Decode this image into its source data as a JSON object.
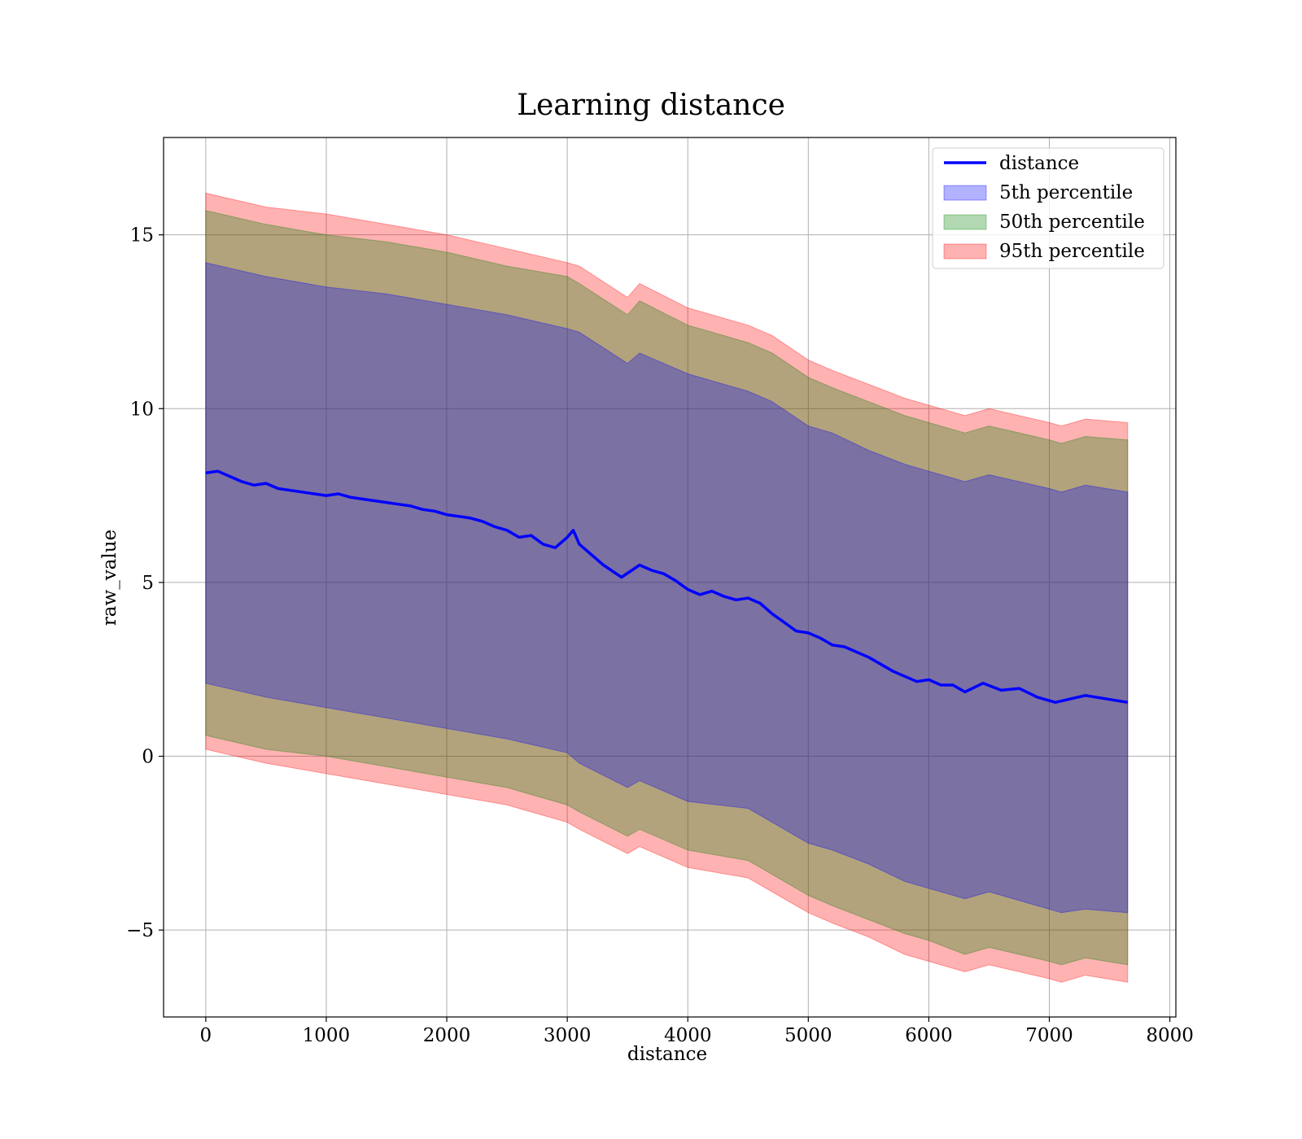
{
  "chart_data": {
    "type": "area",
    "title": "Learning distance",
    "xlabel": "distance",
    "ylabel": "raw_value",
    "xlim": [
      -350,
      8050
    ],
    "ylim": [
      -7.5,
      17.8
    ],
    "xticks": [
      0,
      1000,
      2000,
      3000,
      4000,
      5000,
      6000,
      7000,
      8000
    ],
    "yticks": [
      -5,
      0,
      5,
      10,
      15
    ],
    "ytick_labels": [
      "−5",
      "0",
      "5",
      "10",
      "15"
    ],
    "grid": true,
    "legend_position": "top-right",
    "legend": [
      "distance",
      "5th percentile",
      "50th percentile",
      "95th percentile"
    ],
    "colors": {
      "line": "#0000ff",
      "band_5th": "#0000ff",
      "band_50th": "#008000",
      "band_95th": "#ff0000",
      "band_alpha": 0.3
    },
    "line": {
      "name": "distance",
      "x": [
        0,
        100,
        200,
        300,
        400,
        500,
        600,
        700,
        800,
        900,
        1000,
        1100,
        1200,
        1300,
        1400,
        1500,
        1600,
        1700,
        1800,
        1900,
        2000,
        2100,
        2200,
        2300,
        2400,
        2500,
        2600,
        2700,
        2800,
        2900,
        3000,
        3050,
        3100,
        3200,
        3300,
        3450,
        3600,
        3700,
        3800,
        3900,
        4000,
        4100,
        4200,
        4300,
        4400,
        4500,
        4600,
        4700,
        4800,
        4900,
        5000,
        5100,
        5200,
        5300,
        5400,
        5500,
        5600,
        5700,
        5800,
        5900,
        6000,
        6100,
        6200,
        6300,
        6450,
        6600,
        6750,
        6900,
        7050,
        7300,
        7650
      ],
      "y": [
        8.15,
        8.2,
        8.05,
        7.9,
        7.8,
        7.85,
        7.7,
        7.65,
        7.6,
        7.55,
        7.5,
        7.55,
        7.45,
        7.4,
        7.35,
        7.3,
        7.25,
        7.2,
        7.1,
        7.05,
        6.95,
        6.9,
        6.85,
        6.75,
        6.6,
        6.5,
        6.3,
        6.35,
        6.1,
        6.0,
        6.3,
        6.5,
        6.1,
        5.8,
        5.5,
        5.15,
        5.5,
        5.35,
        5.25,
        5.05,
        4.8,
        4.65,
        4.75,
        4.6,
        4.5,
        4.55,
        4.4,
        4.1,
        3.85,
        3.6,
        3.55,
        3.4,
        3.2,
        3.15,
        3.0,
        2.85,
        2.65,
        2.45,
        2.3,
        2.15,
        2.2,
        2.05,
        2.05,
        1.85,
        2.1,
        1.9,
        1.95,
        1.7,
        1.55,
        1.75,
        1.55
      ]
    },
    "bands": {
      "x": [
        0,
        500,
        1000,
        1500,
        2000,
        2500,
        3000,
        3100,
        3500,
        3600,
        4000,
        4500,
        4700,
        5000,
        5200,
        5500,
        5800,
        6000,
        6300,
        6500,
        7000,
        7100,
        7300,
        7650
      ],
      "p5": {
        "name": "5th percentile",
        "upper": [
          14.2,
          13.8,
          13.5,
          13.3,
          13.0,
          12.7,
          12.3,
          12.2,
          11.3,
          11.6,
          11.0,
          10.5,
          10.2,
          9.5,
          9.3,
          8.8,
          8.4,
          8.2,
          7.9,
          8.1,
          7.7,
          7.6,
          7.8,
          7.6
        ],
        "lower": [
          2.1,
          1.7,
          1.4,
          1.1,
          0.8,
          0.5,
          0.1,
          -0.2,
          -0.9,
          -0.7,
          -1.3,
          -1.5,
          -1.9,
          -2.5,
          -2.7,
          -3.1,
          -3.6,
          -3.8,
          -4.1,
          -3.9,
          -4.4,
          -4.5,
          -4.4,
          -4.5
        ]
      },
      "p50": {
        "name": "50th percentile",
        "upper": [
          15.7,
          15.3,
          15.0,
          14.8,
          14.5,
          14.1,
          13.8,
          13.6,
          12.7,
          13.1,
          12.4,
          11.9,
          11.6,
          10.9,
          10.6,
          10.2,
          9.8,
          9.6,
          9.3,
          9.5,
          9.1,
          9.0,
          9.2,
          9.1
        ],
        "lower": [
          0.6,
          0.2,
          0.0,
          -0.3,
          -0.6,
          -0.9,
          -1.4,
          -1.6,
          -2.3,
          -2.1,
          -2.7,
          -3.0,
          -3.4,
          -4.0,
          -4.3,
          -4.7,
          -5.1,
          -5.3,
          -5.7,
          -5.5,
          -5.9,
          -6.0,
          -5.8,
          -6.0
        ]
      },
      "p95": {
        "name": "95th percentile",
        "upper": [
          16.2,
          15.8,
          15.6,
          15.3,
          15.0,
          14.6,
          14.2,
          14.1,
          13.2,
          13.6,
          12.9,
          12.4,
          12.1,
          11.4,
          11.1,
          10.7,
          10.3,
          10.1,
          9.8,
          10.0,
          9.6,
          9.5,
          9.7,
          9.6
        ],
        "lower": [
          0.2,
          -0.2,
          -0.5,
          -0.8,
          -1.1,
          -1.4,
          -1.9,
          -2.1,
          -2.8,
          -2.6,
          -3.2,
          -3.5,
          -3.9,
          -4.5,
          -4.8,
          -5.2,
          -5.7,
          -5.9,
          -6.2,
          -6.0,
          -6.4,
          -6.5,
          -6.3,
          -6.5
        ]
      }
    }
  }
}
